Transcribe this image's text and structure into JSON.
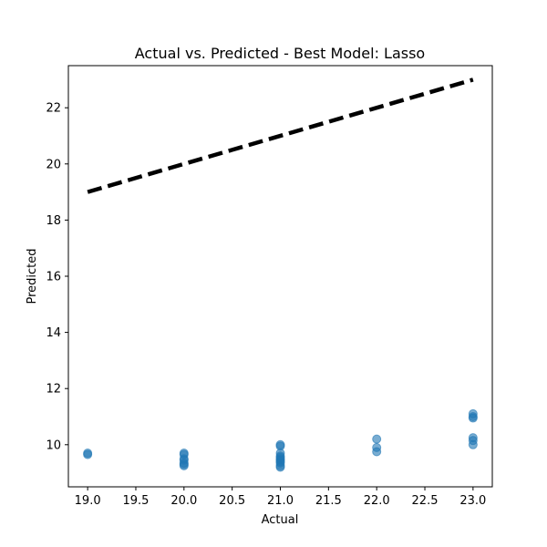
{
  "chart_data": {
    "type": "scatter",
    "title": "Actual vs. Predicted - Best Model: Lasso",
    "xlabel": "Actual",
    "ylabel": "Predicted",
    "xlim": [
      18.8,
      23.2
    ],
    "ylim": [
      8.5,
      23.5
    ],
    "xticks": [
      19.0,
      19.5,
      20.0,
      20.5,
      21.0,
      21.5,
      22.0,
      22.5,
      23.0
    ],
    "xtick_labels": [
      "19.0",
      "19.5",
      "20.0",
      "20.5",
      "21.0",
      "21.5",
      "22.0",
      "22.5",
      "23.0"
    ],
    "yticks": [
      10,
      12,
      14,
      16,
      18,
      20,
      22
    ],
    "ytick_labels": [
      "10",
      "12",
      "14",
      "16",
      "18",
      "20",
      "22"
    ],
    "grid": false,
    "series": [
      {
        "kind": "scatter",
        "color": "#1f77b4",
        "alpha": 0.6,
        "x": [
          19,
          19,
          20,
          20,
          20,
          20,
          20,
          20,
          20,
          21,
          21,
          21,
          21,
          21,
          21,
          21,
          21,
          21,
          21,
          21,
          22,
          22,
          22,
          23,
          23,
          23,
          23,
          23,
          23
        ],
        "y": [
          9.7,
          9.65,
          9.7,
          9.65,
          9.5,
          9.45,
          9.35,
          9.3,
          9.25,
          10.0,
          9.95,
          9.7,
          9.6,
          9.55,
          9.5,
          9.45,
          9.4,
          9.35,
          9.25,
          9.2,
          10.2,
          9.9,
          9.75,
          11.1,
          11.0,
          10.95,
          10.25,
          10.15,
          10.0
        ]
      },
      {
        "kind": "line",
        "style": "dashed",
        "color": "#000000",
        "x": [
          19,
          23
        ],
        "y": [
          19,
          23
        ]
      }
    ]
  }
}
